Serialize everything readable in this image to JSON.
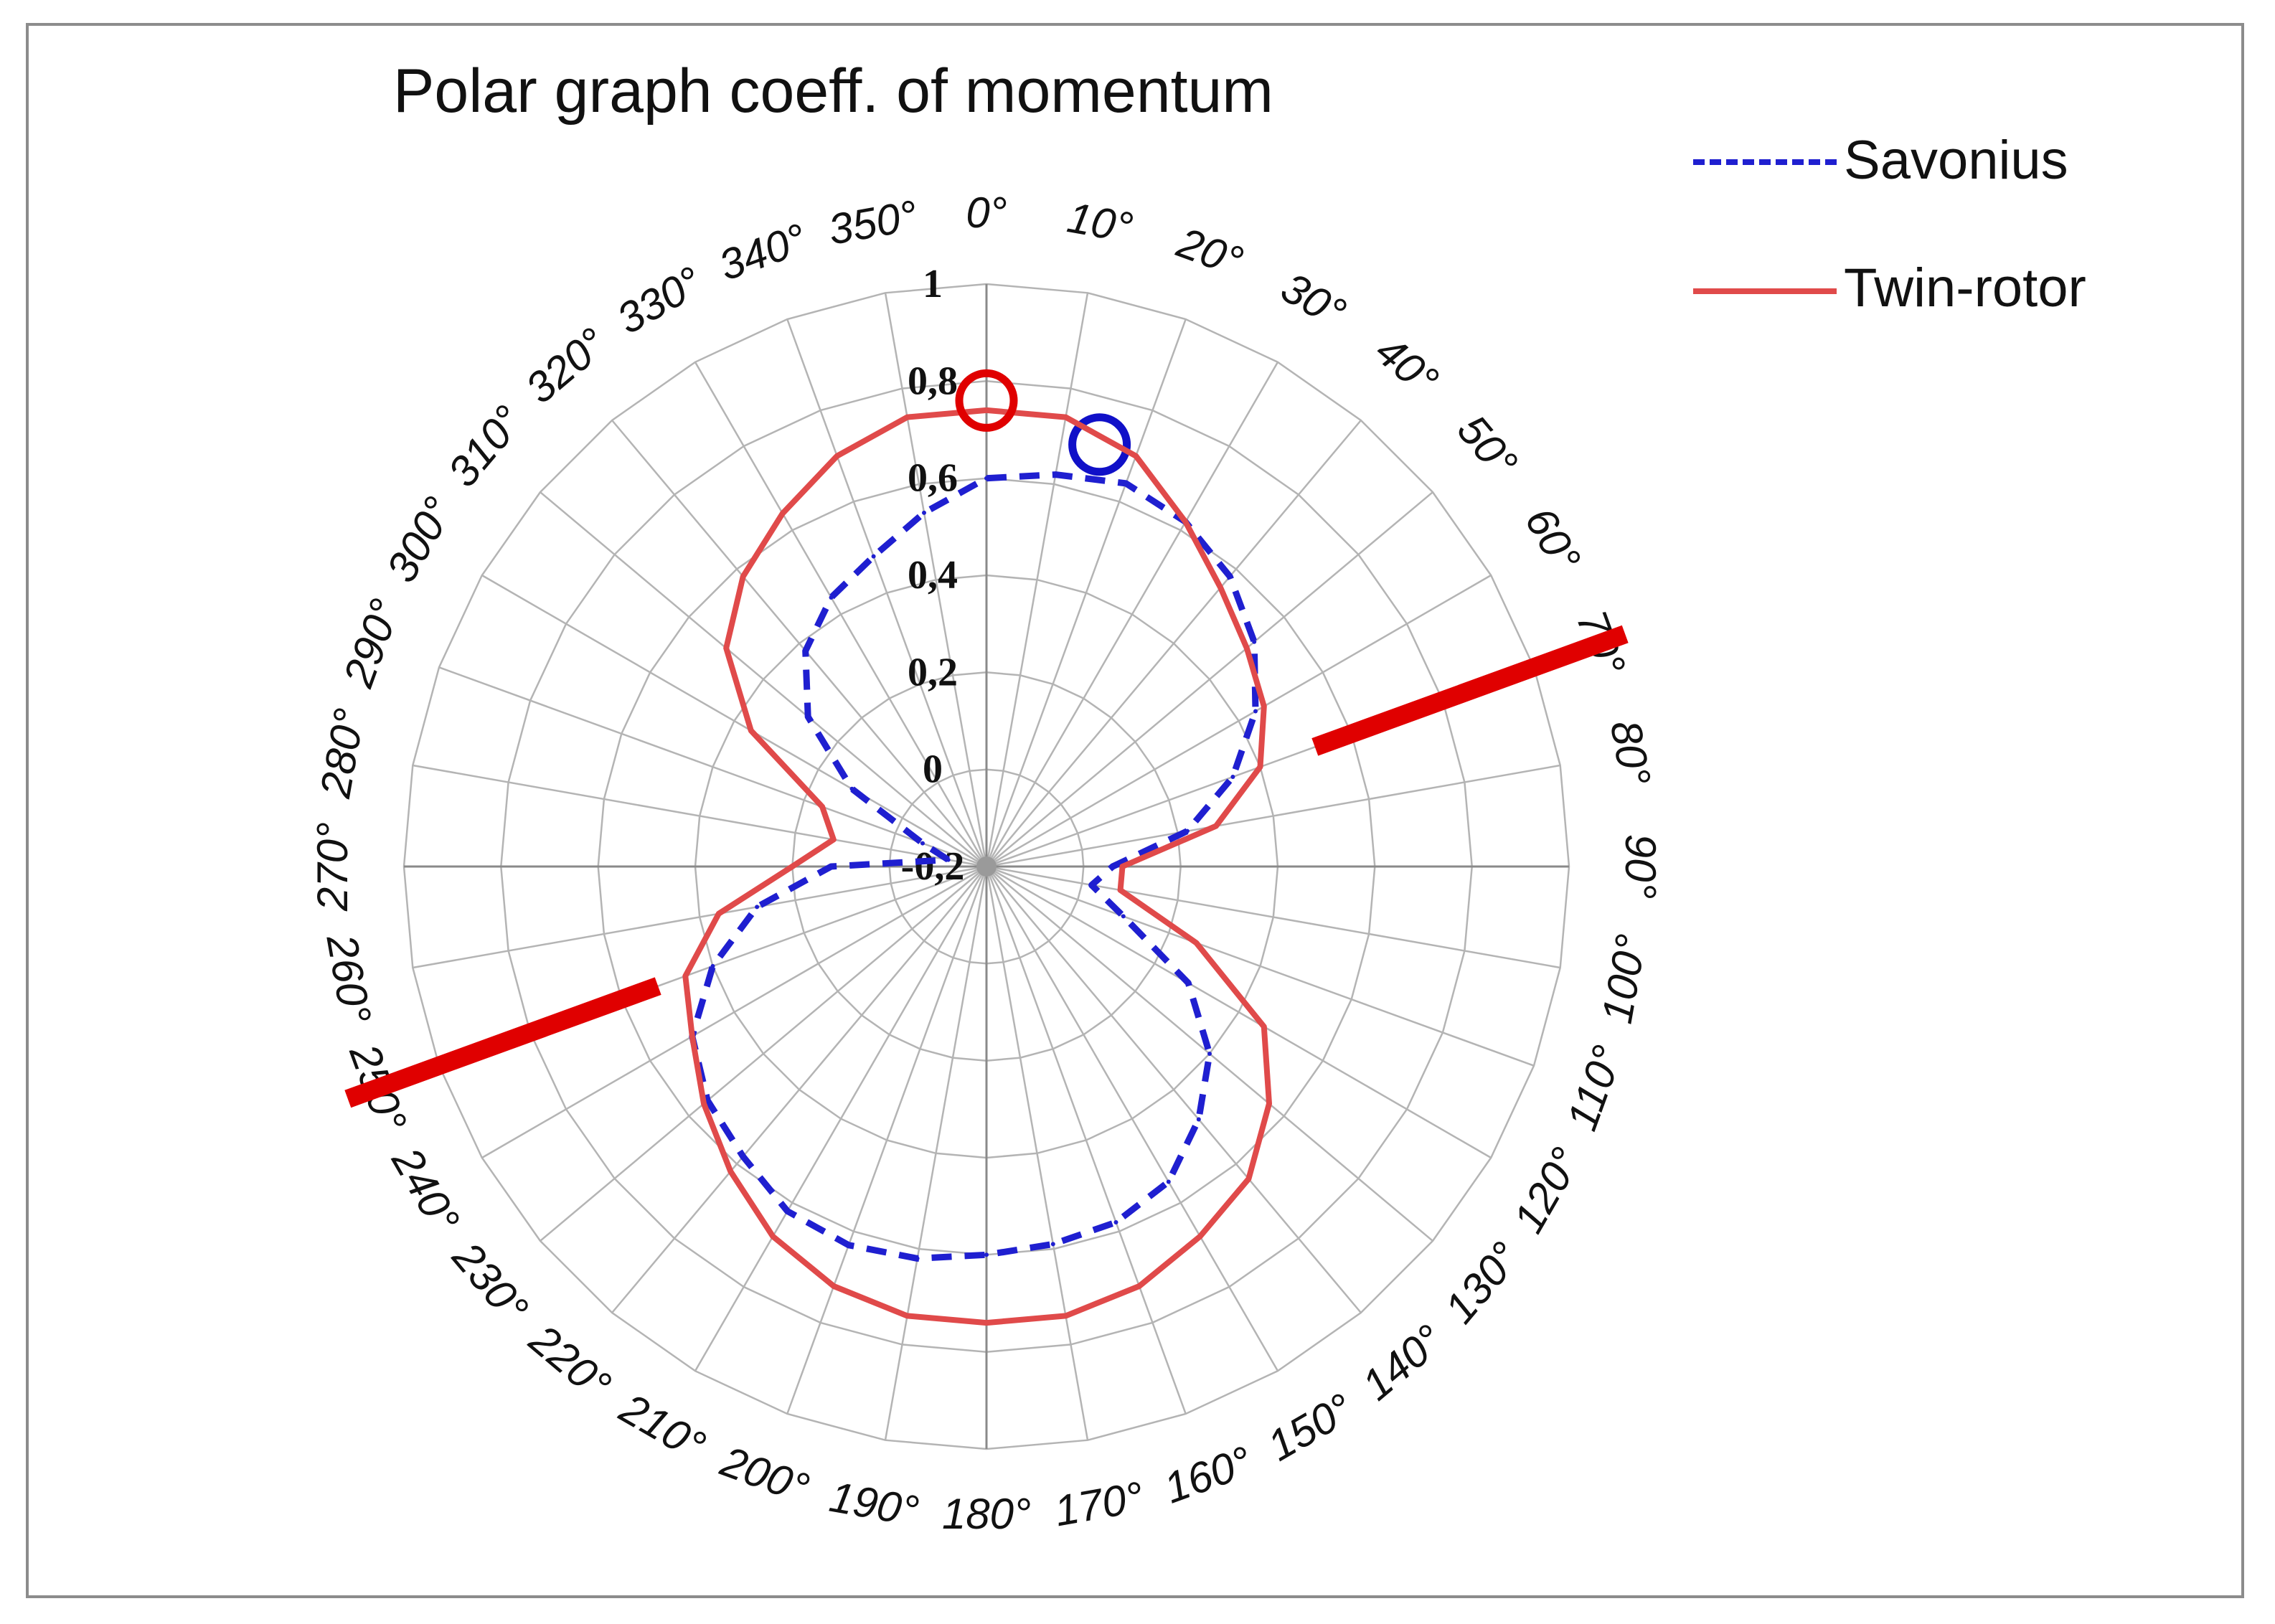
{
  "chart_data": {
    "type": "line",
    "subtype": "polar",
    "title": "Polar graph coeff. of momentum",
    "radial_ticks": [
      "1",
      "0,8",
      "0,6",
      "0,4",
      "0,2",
      "0",
      "-0,2"
    ],
    "radial_range": [
      -0.2,
      1.0
    ],
    "angle_unit": "°",
    "angle_step": 10,
    "grid": true,
    "legend_position": "top-right",
    "theta": [
      0,
      10,
      20,
      30,
      40,
      50,
      60,
      70,
      80,
      90,
      100,
      110,
      120,
      130,
      140,
      150,
      160,
      170,
      180,
      190,
      200,
      210,
      220,
      230,
      240,
      250,
      260,
      270,
      280,
      290,
      300,
      310,
      320,
      330,
      340,
      350
    ],
    "series": [
      {
        "name": "Savonius",
        "color": "#1f1fd0",
        "style": "dashed",
        "r": [
          0.6,
          0.62,
          0.64,
          0.62,
          0.58,
          0.52,
          0.44,
          0.34,
          0.22,
          0.06,
          0.02,
          0.1,
          0.28,
          0.4,
          0.48,
          0.55,
          0.58,
          0.59,
          0.6,
          0.62,
          0.63,
          0.62,
          0.58,
          0.55,
          0.5,
          0.4,
          0.28,
          0.12,
          -0.12,
          -0.06,
          0.12,
          0.28,
          0.38,
          0.44,
          0.48,
          0.54
        ],
        "markers": [
          {
            "theta": 15,
            "r": 0.7
          }
        ]
      },
      {
        "name": "Twin-rotor",
        "color": "#e04a4a",
        "style": "solid",
        "r": [
          0.74,
          0.74,
          0.7,
          0.62,
          0.55,
          0.5,
          0.46,
          0.4,
          0.28,
          0.08,
          0.08,
          0.26,
          0.46,
          0.56,
          0.64,
          0.68,
          0.72,
          0.74,
          0.74,
          0.74,
          0.72,
          0.68,
          0.62,
          0.56,
          0.5,
          0.46,
          0.36,
          0.2,
          0.12,
          0.16,
          0.36,
          0.5,
          0.58,
          0.64,
          0.7,
          0.74
        ],
        "markers": [
          {
            "theta": 0,
            "r": 0.76
          }
        ]
      }
    ],
    "annotation_line": {
      "theta": 70,
      "r_inner": 0.52,
      "r_outer": 1.2,
      "color": "#e00000"
    }
  },
  "legend": {
    "savonius_label": "Savonius",
    "twin_label": "Twin-rotor"
  }
}
